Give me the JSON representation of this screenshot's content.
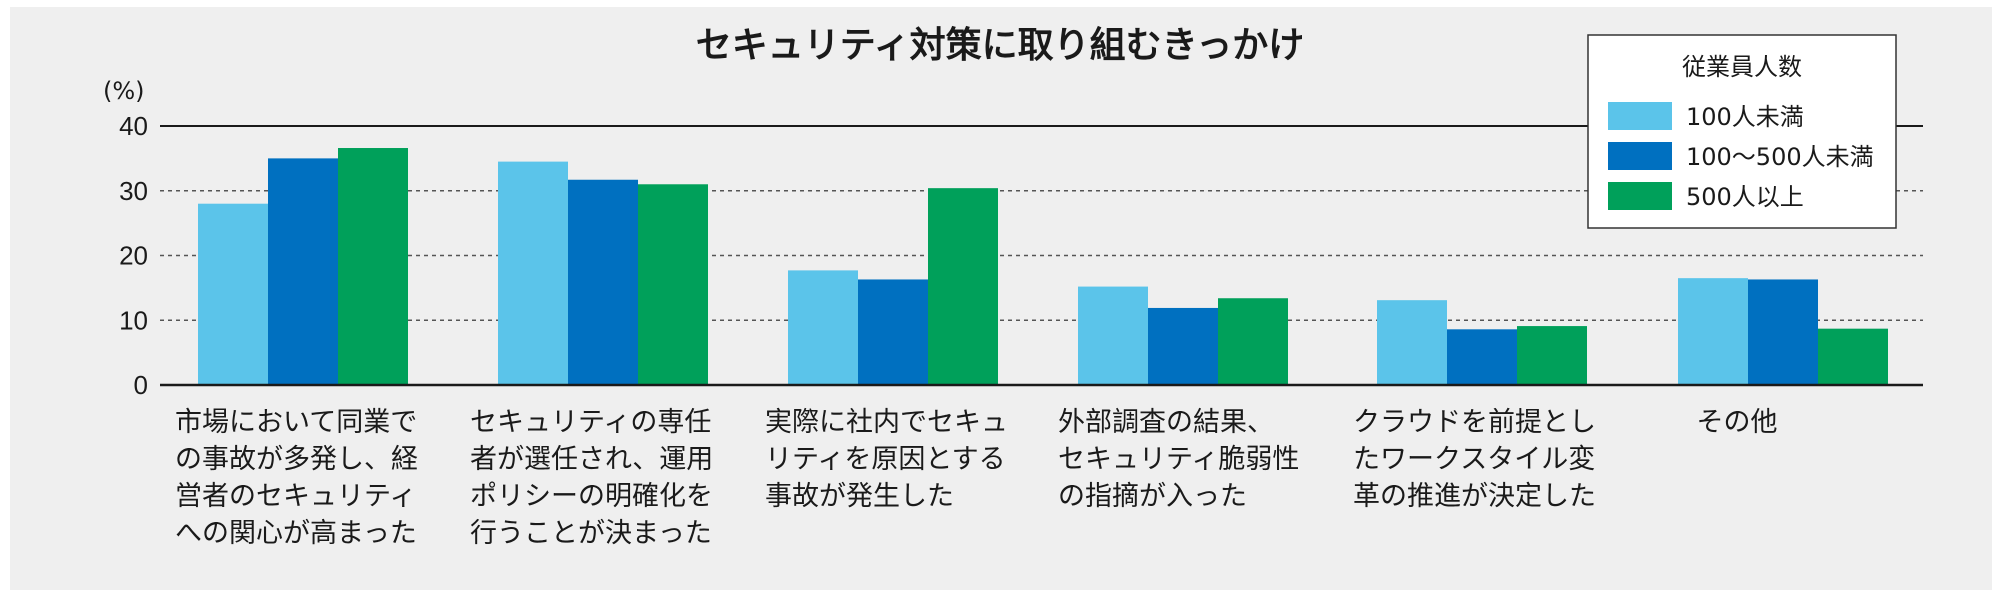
{
  "chart_data": {
    "type": "bar",
    "title": "セキュリティ対策に取り組むきっかけ",
    "ylabel": "(%)",
    "ylim": [
      0,
      40
    ],
    "yticks": [
      0,
      10,
      20,
      30,
      40
    ],
    "grid": true,
    "legend_position": "top-right",
    "legend_title": "従業員人数",
    "categories": [
      [
        "市場において同業で",
        "の事故が多発し、経",
        "営者のセキュリティ",
        "への関心が高まった"
      ],
      [
        "セキュリティの専任",
        "者が選任され、運用",
        "ポリシーの明確化を",
        "行うことが決まった"
      ],
      [
        "実際に社内でセキュ",
        "リティを原因とする",
        "事故が発生した"
      ],
      [
        "外部調査の結果、",
        "セキュリティ脆弱性",
        "の指摘が入った"
      ],
      [
        "クラウドを前提とし",
        "たワークスタイル変",
        "革の推進が決定した"
      ],
      [
        "その他"
      ]
    ],
    "series": [
      {
        "name": "100人未満",
        "color": "#5bc4ea",
        "values": [
          28,
          34.5,
          17.7,
          15.2,
          13.1,
          16.5
        ]
      },
      {
        "name": "100〜500人未満",
        "color": "#0070c0",
        "values": [
          35,
          31.7,
          16.3,
          11.9,
          8.6,
          16.3
        ]
      },
      {
        "name": "500人以上",
        "color": "#00a05a",
        "values": [
          36.6,
          31,
          30.4,
          13.4,
          9.1,
          8.7
        ]
      }
    ]
  }
}
